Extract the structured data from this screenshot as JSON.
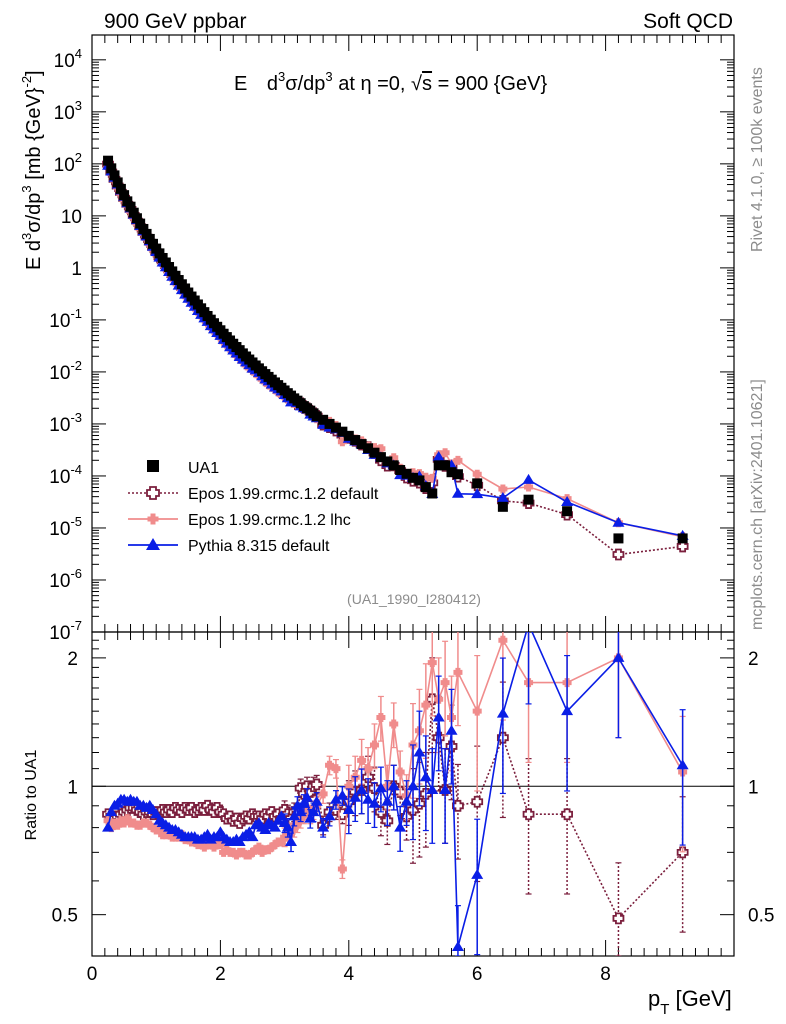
{
  "header": {
    "left": "900 GeV ppbar",
    "right": "Soft QCD"
  },
  "side_labels": {
    "rivet": "Rivet 4.1.0, ≥ 100k events",
    "mcplots": "mcplots.cern.ch [arXiv:2401.10621]"
  },
  "chart_data": [
    {
      "type": "scatter",
      "title_parts": {
        "E": "E",
        "d": "d",
        "sup3a": "3",
        "sigma_dp": "σ/dp",
        "sup3b": "3",
        "at_eta": " at η =0, ",
        "sqrt": "√",
        "s": "s",
        "energy": " = 900 {GeV}"
      },
      "ylabel_parts": {
        "E_d": "E d",
        "sup3a": "3",
        "sigma_dp": "σ/dp",
        "sup3b": "3",
        "unit": " [mb {GeV}",
        "sup_m2": "-2",
        "close": "]"
      },
      "yscale": "log",
      "ylim": [
        1e-07,
        30000
      ],
      "xlim": [
        0,
        10
      ],
      "ytick_labels": [
        {
          "mant": "10",
          "exp": "-7"
        },
        {
          "mant": "10",
          "exp": "-6"
        },
        {
          "mant": "10",
          "exp": "-5"
        },
        {
          "mant": "10",
          "exp": "-4"
        },
        {
          "mant": "10",
          "exp": "-3"
        },
        {
          "mant": "10",
          "exp": "-2"
        },
        {
          "mant": "10",
          "exp": "-1"
        },
        {
          "mant": "1",
          "exp": ""
        },
        {
          "mant": "10",
          "exp": ""
        },
        {
          "mant": "10",
          "exp": "2"
        },
        {
          "mant": "10",
          "exp": "3"
        },
        {
          "mant": "10",
          "exp": "4"
        }
      ],
      "analysis_label": "(UA1_1990_I280412)",
      "legend": [
        {
          "label": "UA1",
          "color": "#000000",
          "marker": "square"
        },
        {
          "label": "Epos 1.99.crmc.1.2 default",
          "color": "#7b1f3d",
          "marker": "open-cross",
          "dash": true
        },
        {
          "label": "Epos 1.99.crmc.1.2 lhc",
          "color": "#f08c8c",
          "marker": "cross"
        },
        {
          "label": "Pythia 8.315 default",
          "color": "#0a1ee6",
          "marker": "triangle"
        }
      ],
      "x": [
        0.25,
        0.3,
        0.35,
        0.4,
        0.45,
        0.5,
        0.55,
        0.6,
        0.65,
        0.7,
        0.75,
        0.8,
        0.85,
        0.9,
        0.95,
        1.0,
        1.05,
        1.1,
        1.15,
        1.2,
        1.25,
        1.3,
        1.35,
        1.4,
        1.45,
        1.5,
        1.55,
        1.6,
        1.65,
        1.7,
        1.75,
        1.8,
        1.85,
        1.9,
        1.95,
        2.0,
        2.05,
        2.1,
        2.15,
        2.2,
        2.25,
        2.3,
        2.35,
        2.4,
        2.45,
        2.5,
        2.55,
        2.6,
        2.65,
        2.7,
        2.75,
        2.8,
        2.85,
        2.9,
        2.95,
        3.0,
        3.05,
        3.1,
        3.15,
        3.2,
        3.25,
        3.3,
        3.35,
        3.4,
        3.45,
        3.5,
        3.6,
        3.7,
        3.8,
        3.9,
        4.0,
        4.1,
        4.2,
        4.3,
        4.4,
        4.5,
        4.6,
        4.7,
        4.8,
        4.9,
        5.0,
        5.1,
        5.2,
        5.3,
        5.4,
        5.5,
        5.6,
        5.7,
        6.0,
        6.4,
        6.8,
        7.4,
        8.2,
        9.2
      ],
      "series": [
        {
          "name": "UA1",
          "values": [
            115,
            82,
            60,
            44,
            33,
            25,
            19,
            15,
            11.5,
            9.0,
            7.1,
            5.6,
            4.5,
            3.6,
            2.9,
            2.35,
            1.9,
            1.55,
            1.27,
            1.04,
            0.855,
            0.705,
            0.584,
            0.484,
            0.402,
            0.336,
            0.281,
            0.236,
            0.198,
            0.167,
            0.141,
            0.119,
            0.101,
            0.0863,
            0.0737,
            0.0632,
            0.0542,
            0.0467,
            0.0402,
            0.0348,
            0.0301,
            0.0262,
            0.0227,
            0.0198,
            0.0173,
            0.0152,
            0.0133,
            0.0117,
            0.0103,
            0.00908,
            0.00802,
            0.00709,
            0.00628,
            0.00557,
            0.00495,
            0.0044,
            0.0039,
            0.0035,
            0.0031,
            0.0028,
            0.0025,
            0.0022,
            0.002,
            0.0018,
            0.0016,
            0.0014,
            0.0012,
            0.001,
            0.00085,
            0.00071,
            0.00059,
            0.00049,
            0.00041,
            0.00034,
            0.00028,
            0.00023,
            0.00019,
            0.00016,
            0.00013,
            0.00011,
            9.2e-05,
            8.2e-05,
            6.1e-05,
            4.6e-05,
            0.00016,
            0.00016,
            0.000118,
            0.000108,
            7.2e-05,
            2.55e-05,
            3.5e-05,
            2.1e-05,
            6.3e-06,
            6.3e-06
          ]
        },
        {
          "name": "Epos 1.99.crmc.1.2 default",
          "ratio": [
            0.86,
            0.85,
            0.84,
            0.85,
            0.86,
            0.87,
            0.88,
            0.89,
            0.89,
            0.88,
            0.87,
            0.86,
            0.87,
            0.87,
            0.86,
            0.87,
            0.86,
            0.88,
            0.87,
            0.88,
            0.87,
            0.89,
            0.88,
            0.87,
            0.89,
            0.88,
            0.89,
            0.87,
            0.88,
            0.89,
            0.88,
            0.9,
            0.88,
            0.87,
            0.89,
            0.87,
            0.86,
            0.84,
            0.85,
            0.83,
            0.84,
            0.82,
            0.84,
            0.85,
            0.84,
            0.86,
            0.85,
            0.85,
            0.84,
            0.86,
            0.85,
            0.87,
            0.85,
            0.86,
            0.84,
            0.88,
            0.86,
            0.84,
            0.87,
            0.86,
            0.99,
            0.96,
            1.0,
            0.97,
            1.0,
            1.01,
            0.81,
            0.87,
            0.88,
            0.86,
            0.92,
            0.97,
            0.98,
            1.05,
            0.99,
            0.87,
            0.83,
            1.0,
            0.97,
            0.85,
            0.88,
            0.91,
            0.96,
            1.6,
            1.3,
            0.98,
            1.24,
            0.9,
            0.92,
            1.3,
            0.86,
            0.86,
            0.49,
            0.7
          ]
        },
        {
          "name": "Epos 1.99.crmc.1.2 lhc",
          "ratio": [
            0.83,
            0.8,
            0.82,
            0.81,
            0.83,
            0.82,
            0.84,
            0.82,
            0.82,
            0.81,
            0.81,
            0.82,
            0.82,
            0.81,
            0.8,
            0.79,
            0.79,
            0.77,
            0.77,
            0.78,
            0.76,
            0.76,
            0.76,
            0.77,
            0.75,
            0.75,
            0.74,
            0.74,
            0.73,
            0.74,
            0.72,
            0.73,
            0.74,
            0.72,
            0.73,
            0.73,
            0.7,
            0.71,
            0.7,
            0.7,
            0.69,
            0.7,
            0.7,
            0.69,
            0.69,
            0.7,
            0.71,
            0.72,
            0.7,
            0.71,
            0.71,
            0.72,
            0.73,
            0.74,
            0.74,
            0.76,
            0.77,
            0.78,
            0.8,
            0.82,
            0.84,
            0.86,
            0.88,
            0.86,
            0.88,
            0.9,
            0.96,
            1.12,
            1.1,
            0.64,
            1.0,
            1.05,
            1.15,
            1.1,
            1.25,
            1.45,
            1.0,
            1.4,
            1.08,
            0.95,
            1.25,
            1.35,
            1.55,
            1.95,
            1.6,
            1.75,
            1.45,
            1.85,
            1.5,
            2.2,
            1.75,
            1.75,
            2.0,
            1.08
          ]
        },
        {
          "name": "Pythia 8.315 default",
          "ratio": [
            0.8,
            0.87,
            0.9,
            0.91,
            0.93,
            0.93,
            0.92,
            0.93,
            0.92,
            0.92,
            0.9,
            0.9,
            0.89,
            0.9,
            0.88,
            0.86,
            0.83,
            0.82,
            0.81,
            0.8,
            0.79,
            0.79,
            0.78,
            0.77,
            0.76,
            0.76,
            0.76,
            0.76,
            0.75,
            0.75,
            0.76,
            0.77,
            0.75,
            0.76,
            0.76,
            0.78,
            0.76,
            0.75,
            0.74,
            0.74,
            0.75,
            0.74,
            0.76,
            0.77,
            0.78,
            0.76,
            0.81,
            0.82,
            0.8,
            0.79,
            0.82,
            0.81,
            0.8,
            0.83,
            0.85,
            0.82,
            0.8,
            0.74,
            0.85,
            0.9,
            0.87,
            0.91,
            0.94,
            0.84,
            0.87,
            0.92,
            0.8,
            0.85,
            0.93,
            0.95,
            0.88,
            0.94,
            0.98,
            0.93,
            0.91,
            0.99,
            0.92,
            1.0,
            0.8,
            0.92,
            1.0,
            1.2,
            1.05,
            0.98,
            1.45,
            0.98,
            1.35,
            0.42,
            0.62,
            1.48,
            2.4,
            1.5,
            2.0,
            1.12
          ]
        }
      ]
    },
    {
      "type": "scatter",
      "ylabel": "Ratio to UA1",
      "xlabel_parts": {
        "p": "p",
        "sub": "T",
        "unit": " [GeV]"
      },
      "ylim": [
        0.4,
        2.3
      ],
      "yscale": "log",
      "ytick_labels": [
        "0.5",
        "1",
        "2"
      ],
      "xtick_labels": [
        "0",
        "2",
        "4",
        "6",
        "8"
      ],
      "reference": 1.0
    }
  ]
}
